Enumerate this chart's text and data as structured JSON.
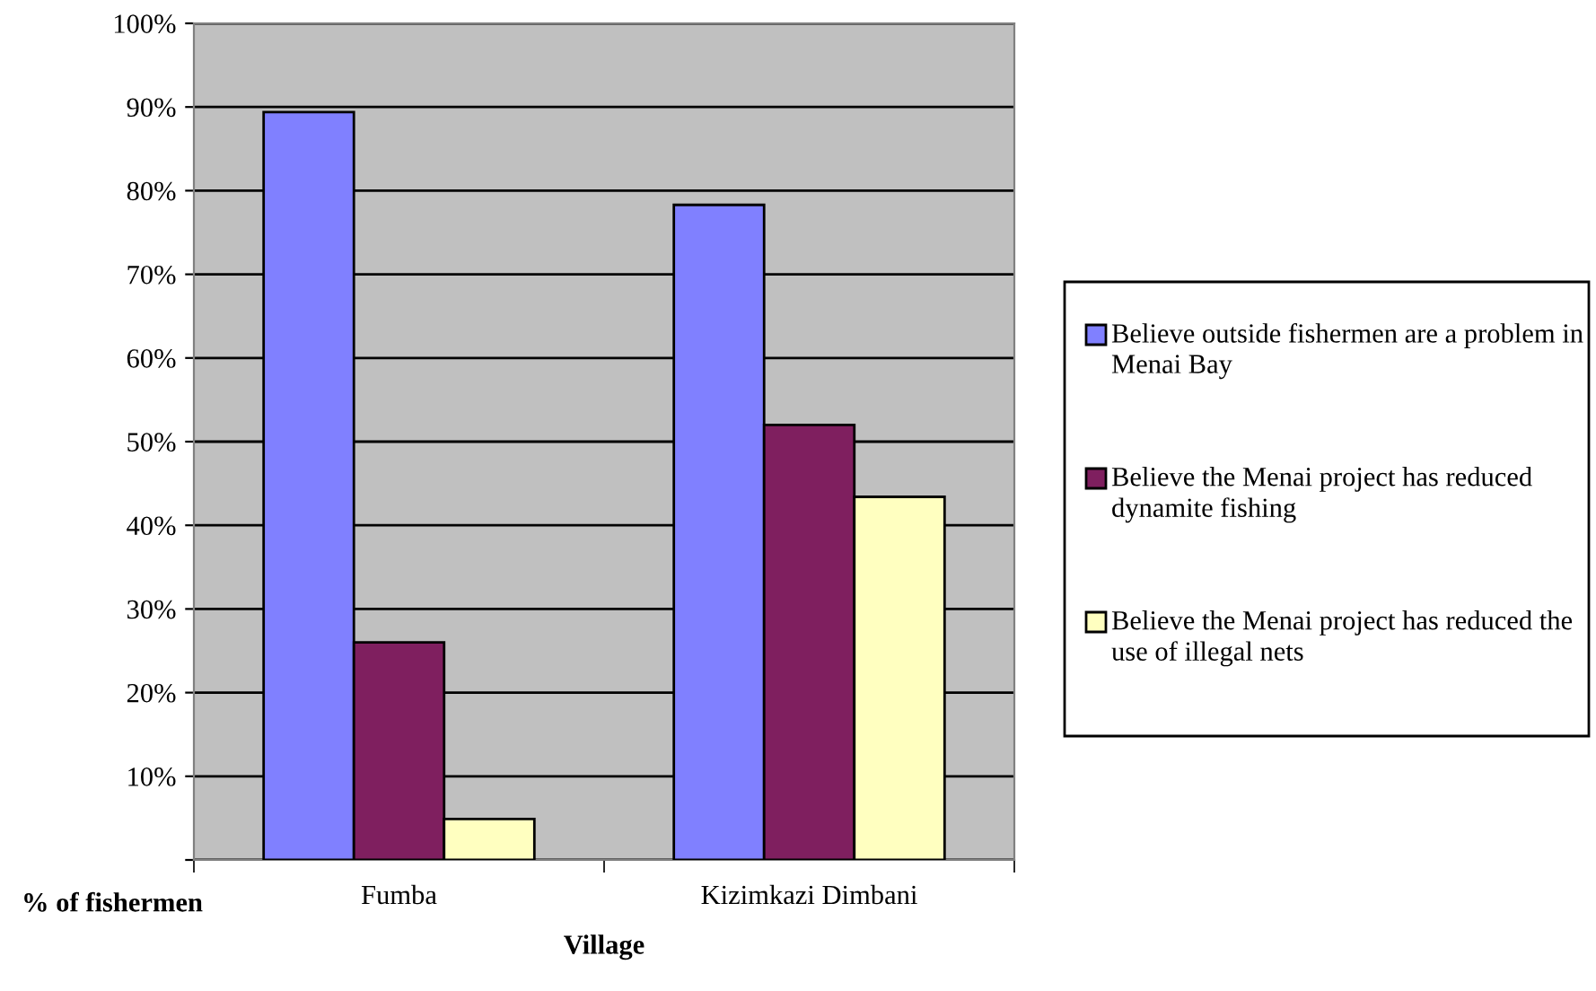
{
  "chart_data": {
    "type": "bar",
    "categories": [
      "Fumba",
      "Kizimkazi Dimbani"
    ],
    "xlabel": "Village",
    "ylabel": "% of fishermen",
    "series": [
      {
        "name": "Believe outside fishermen are a problem in Menai Bay",
        "color": "#8080ff",
        "values": [
          89.4,
          78.3
        ]
      },
      {
        "name": "Believe the Menai project has reduced dynamite fishing",
        "color": "#7f1f5f",
        "values": [
          26,
          52
        ]
      },
      {
        "name": "Believe the Menai project has reduced the use of illegal nets",
        "color": "#ffffc0",
        "values": [
          4.9,
          43.4
        ]
      }
    ],
    "ylim": [
      0,
      100
    ],
    "yticks": [
      {
        "value": 0,
        "label": null
      },
      {
        "value": 10,
        "label": "10%"
      },
      {
        "value": 20,
        "label": "20%"
      },
      {
        "value": 30,
        "label": "30%"
      },
      {
        "value": 40,
        "label": "40%"
      },
      {
        "value": 50,
        "label": "50%"
      },
      {
        "value": 60,
        "label": "60%"
      },
      {
        "value": 70,
        "label": "70%"
      },
      {
        "value": 80,
        "label": "80%"
      },
      {
        "value": 90,
        "label": "90%"
      },
      {
        "value": 100,
        "label": "100%"
      }
    ],
    "grid": "y",
    "legend": "right"
  }
}
